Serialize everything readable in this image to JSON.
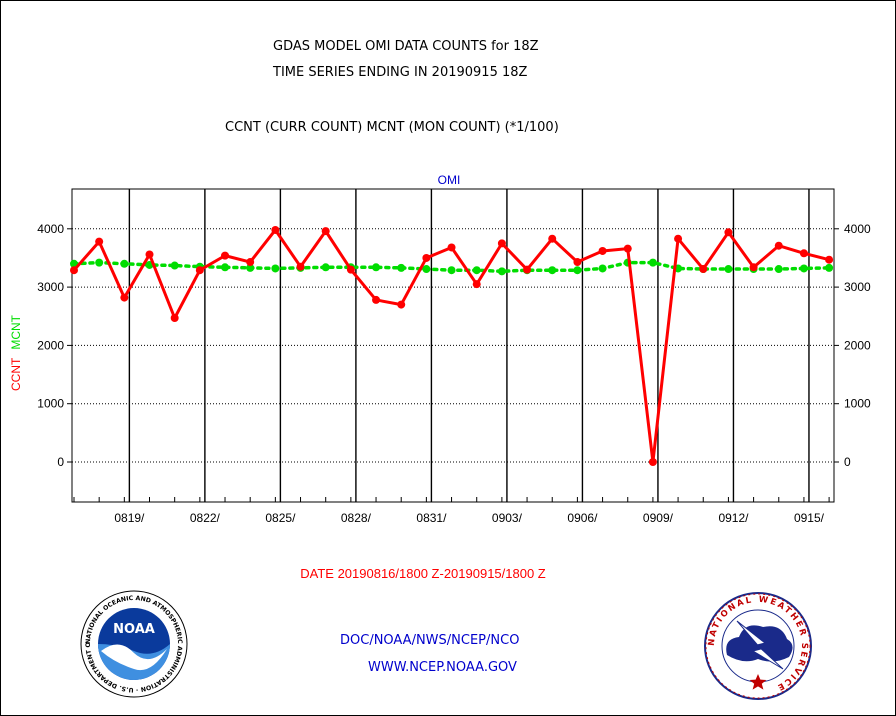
{
  "header": {
    "title_line1": "GDAS MODEL OMI DATA COUNTS for 18Z",
    "title_line2": "TIME SERIES ENDING IN 20190915 18Z",
    "subtitle": "CCNT (CURR COUNT) MCNT (MON COUNT) (*1/100)"
  },
  "footer": {
    "org_line": "DOC/NOAA/NWS/NCEP/NCO",
    "website": "WWW.NCEP.NOAA.GOV"
  },
  "logos": {
    "noaa": {
      "center_text": "NOAA",
      "ring_text": "NATIONAL OCEANIC AND ATMOSPHERIC ADMINISTRATION · U.S. DEPARTMENT OF COMMERCE ·"
    },
    "nws": {
      "ring_text": "NATIONAL WEATHER SERVICE"
    }
  },
  "chart_data": {
    "type": "line",
    "title": "OMI",
    "ylabel_parts": [
      {
        "text": "CCNT",
        "color": "#ff0000"
      },
      {
        "text": "MCNT",
        "color": "#00dd00"
      }
    ],
    "xlabel": "DATE 20190816/1800 Z-20190915/1800 Z",
    "ylim": [
      -700,
      4700
    ],
    "yticks": [
      0,
      1000,
      2000,
      3000,
      4000
    ],
    "xlim": [
      0,
      30.3
    ],
    "xticks": [
      {
        "pos": 2.2,
        "label": "0819/"
      },
      {
        "pos": 5.2,
        "label": "0822/"
      },
      {
        "pos": 8.2,
        "label": "0825/"
      },
      {
        "pos": 11.2,
        "label": "0828/"
      },
      {
        "pos": 14.2,
        "label": "0831/"
      },
      {
        "pos": 17.2,
        "label": "0903/"
      },
      {
        "pos": 20.2,
        "label": "0906/"
      },
      {
        "pos": 23.2,
        "label": "0909/"
      },
      {
        "pos": 26.2,
        "label": "0912/"
      },
      {
        "pos": 29.2,
        "label": "0915/"
      }
    ],
    "grid": true,
    "series": [
      {
        "name": "CCNT",
        "color": "#ff0000",
        "style": "solid",
        "x": [
          0,
          1,
          2,
          3,
          4,
          5,
          6,
          7,
          8,
          9,
          10,
          11,
          12,
          13,
          14,
          15,
          16,
          17,
          18,
          19,
          20,
          21,
          22,
          23,
          24,
          25,
          26,
          27,
          28,
          29,
          30
        ],
        "values": [
          3290,
          3780,
          2820,
          3560,
          2470,
          3290,
          3540,
          3430,
          3980,
          3350,
          3960,
          3300,
          2780,
          2700,
          3500,
          3680,
          3050,
          3750,
          3300,
          3830,
          3430,
          3620,
          3660,
          0,
          3830,
          3310,
          3940,
          3340,
          3710,
          3580,
          3470
        ]
      },
      {
        "name": "MCNT",
        "color": "#00dd00",
        "style": "dotted",
        "x": [
          0,
          1,
          2,
          3,
          4,
          5,
          6,
          7,
          8,
          9,
          10,
          11,
          12,
          13,
          14,
          15,
          16,
          17,
          18,
          19,
          20,
          21,
          22,
          23,
          24,
          25,
          26,
          27,
          28,
          29,
          30
        ],
        "values": [
          3400,
          3420,
          3400,
          3380,
          3370,
          3350,
          3340,
          3330,
          3320,
          3330,
          3340,
          3340,
          3340,
          3330,
          3310,
          3290,
          3290,
          3270,
          3290,
          3290,
          3290,
          3320,
          3420,
          3420,
          3320,
          3310,
          3310,
          3310,
          3310,
          3320,
          3330
        ]
      }
    ]
  }
}
